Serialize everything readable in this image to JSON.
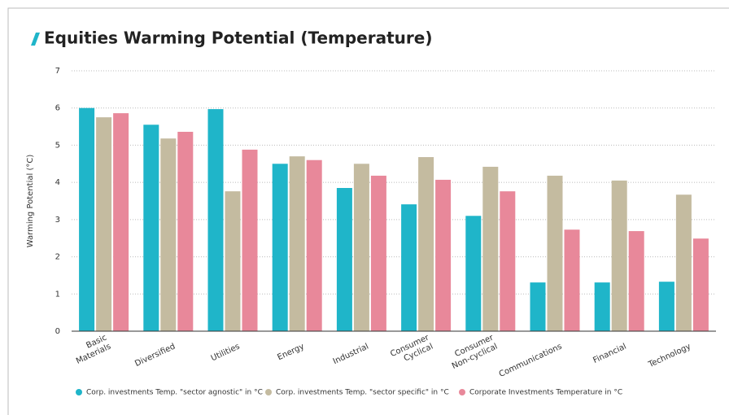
{
  "chart_data": {
    "type": "bar",
    "title": "Equities Warming Potential (Temperature)",
    "y_label": "Warming Potential (°C)",
    "categories": [
      "Basic\nMaterials",
      "Diversified",
      "Utilities",
      "Energy",
      "Industrial",
      "Consumer\nCyclical",
      "Consumer\nNon-cyclical",
      "Communications",
      "Financial",
      "Technology"
    ],
    "series": [
      {
        "name": "Corp. investments Temp. \"sector agnostic\"  in °C",
        "color": "#1fb5c9",
        "values": [
          6.0,
          5.55,
          5.97,
          4.5,
          3.85,
          3.41,
          3.1,
          1.31,
          1.31,
          1.33
        ]
      },
      {
        "name": "Corp. investments Temp. \"sector specific\"  in °C",
        "color": "#c4bba0",
        "values": [
          5.75,
          5.18,
          3.76,
          4.7,
          4.5,
          4.68,
          4.42,
          4.18,
          4.05,
          3.67
        ]
      },
      {
        "name": "Corporate Investments Temperature in °C",
        "color": "#e8889a",
        "values": [
          5.86,
          5.36,
          4.88,
          4.6,
          4.18,
          4.07,
          3.76,
          2.73,
          2.69,
          2.49
        ]
      }
    ],
    "ylim": [
      0,
      7
    ],
    "yticks": [
      0,
      1,
      2,
      3,
      4,
      5,
      6,
      7
    ],
    "grid": true,
    "legend": "bottom"
  }
}
